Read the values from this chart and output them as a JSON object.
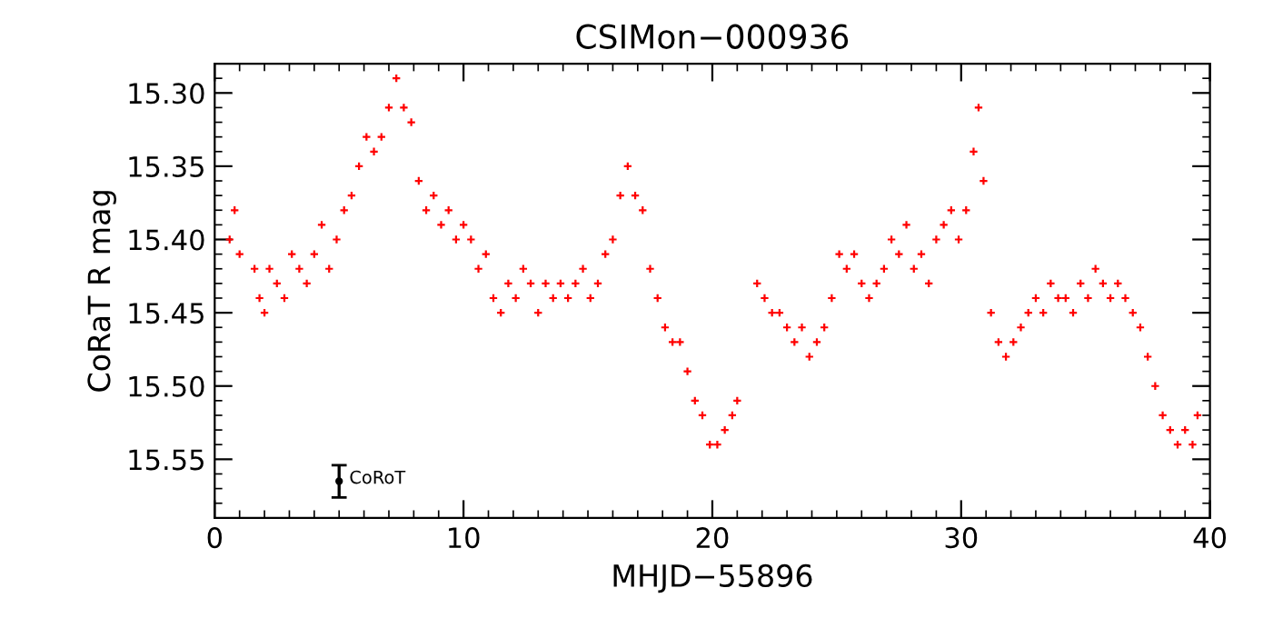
{
  "chart_data": {
    "type": "scatter",
    "title": "CSIMon−000936",
    "xlabel": "MHJD−55896",
    "ylabel": "CoRaT R mag",
    "xlim": [
      0,
      40
    ],
    "xticks": [
      0,
      10,
      20,
      30,
      40
    ],
    "ylim": [
      15.59,
      15.28
    ],
    "yticks": [
      {
        "value": 15.3,
        "label": "15.30"
      },
      15.35,
      {
        "value": 15.4,
        "label": "15.40"
      },
      15.45,
      {
        "value": 15.5,
        "label": "15.50"
      },
      15.55
    ],
    "marker": "cross",
    "grid": false,
    "series": [
      {
        "color": "#ff0000",
        "x": [
          0.6,
          0.8,
          1.0,
          1.6,
          1.8,
          2.0,
          2.2,
          2.5,
          2.8,
          3.1,
          3.4,
          3.7,
          4.0,
          4.3,
          4.6,
          4.9,
          5.2,
          5.5,
          5.8,
          6.1,
          6.4,
          6.7,
          7.0,
          7.3,
          7.6,
          7.9,
          8.2,
          8.5,
          8.8,
          9.1,
          9.4,
          9.7,
          10.0,
          10.3,
          10.6,
          10.9,
          11.2,
          11.5,
          11.8,
          12.1,
          12.4,
          12.7,
          13.0,
          13.3,
          13.6,
          13.9,
          14.2,
          14.5,
          14.8,
          15.1,
          15.4,
          15.7,
          16.0,
          16.3,
          16.6,
          16.9,
          17.2,
          17.5,
          17.8,
          18.1,
          18.4,
          18.7,
          19.0,
          19.3,
          19.6,
          19.9,
          20.2,
          20.5,
          20.8,
          21.0,
          21.8,
          22.1,
          22.4,
          22.7,
          23.0,
          23.3,
          23.6,
          23.9,
          24.2,
          24.5,
          24.8,
          25.1,
          25.4,
          25.7,
          26.0,
          26.3,
          26.6,
          26.9,
          27.2,
          27.5,
          27.8,
          28.1,
          28.4,
          28.7,
          29.0,
          29.3,
          29.6,
          29.9,
          30.2,
          30.5,
          30.7,
          30.9,
          31.2,
          31.5,
          31.8,
          32.1,
          32.4,
          32.7,
          33.0,
          33.3,
          33.6,
          33.9,
          34.2,
          34.5,
          34.8,
          35.1,
          35.4,
          35.7,
          36.0,
          36.3,
          36.6,
          36.9,
          37.2,
          37.5,
          37.8,
          38.1,
          38.4,
          38.7,
          39.0,
          39.3,
          39.5
        ],
        "values": [
          15.4,
          15.38,
          15.41,
          15.42,
          15.44,
          15.45,
          15.42,
          15.43,
          15.44,
          15.41,
          15.42,
          15.43,
          15.41,
          15.39,
          15.42,
          15.4,
          15.38,
          15.37,
          15.35,
          15.33,
          15.34,
          15.33,
          15.31,
          15.29,
          15.31,
          15.32,
          15.36,
          15.38,
          15.37,
          15.39,
          15.38,
          15.4,
          15.39,
          15.4,
          15.42,
          15.41,
          15.44,
          15.45,
          15.43,
          15.44,
          15.42,
          15.43,
          15.45,
          15.43,
          15.44,
          15.43,
          15.44,
          15.43,
          15.42,
          15.44,
          15.43,
          15.41,
          15.4,
          15.37,
          15.35,
          15.37,
          15.38,
          15.42,
          15.44,
          15.46,
          15.47,
          15.47,
          15.49,
          15.51,
          15.52,
          15.54,
          15.54,
          15.53,
          15.52,
          15.51,
          15.43,
          15.44,
          15.45,
          15.45,
          15.46,
          15.47,
          15.46,
          15.48,
          15.47,
          15.46,
          15.44,
          15.41,
          15.42,
          15.41,
          15.43,
          15.44,
          15.43,
          15.42,
          15.4,
          15.41,
          15.39,
          15.42,
          15.41,
          15.43,
          15.4,
          15.39,
          15.38,
          15.4,
          15.38,
          15.34,
          15.31,
          15.36,
          15.45,
          15.47,
          15.48,
          15.47,
          15.46,
          15.45,
          15.44,
          15.45,
          15.43,
          15.44,
          15.44,
          15.45,
          15.43,
          15.44,
          15.42,
          15.43,
          15.44,
          15.43,
          15.44,
          15.45,
          15.46,
          15.48,
          15.5,
          15.52,
          15.53,
          15.54,
          15.53,
          15.54,
          15.52
        ]
      },
      {
        "name": "CoRoT",
        "color": "#000000",
        "x": [
          5
        ],
        "values": [
          15.565
        ],
        "errors": [
          0.011
        ]
      }
    ]
  }
}
